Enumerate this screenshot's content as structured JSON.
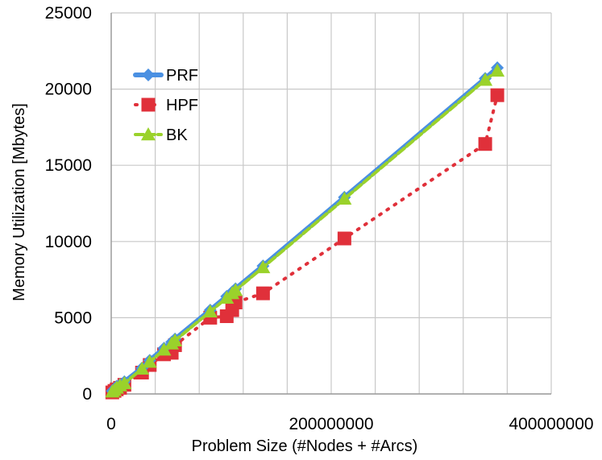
{
  "chart_data": {
    "type": "line",
    "title": "",
    "xlabel": "Problem Size (#Nodes + #Arcs)",
    "ylabel": "Memory Utilization [Mbytes]",
    "xlim": [
      0,
      400000000
    ],
    "ylim": [
      0,
      25000
    ],
    "x_ticks": [
      0,
      200000000,
      400000000
    ],
    "x_tick_labels": [
      "0",
      "200000000",
      "400000000"
    ],
    "y_ticks": [
      0,
      5000,
      10000,
      15000,
      20000,
      25000
    ],
    "y_tick_labels": [
      "0",
      "5000",
      "10000",
      "15000",
      "20000",
      "25000"
    ],
    "grid": true,
    "x_gridlines": [
      0,
      40000000,
      80000000,
      120000000,
      160000000,
      200000000,
      240000000,
      280000000,
      320000000,
      360000000,
      400000000
    ],
    "legend_position": "top-left",
    "series": [
      {
        "name": "PRF",
        "color": "#4a90e2",
        "marker": "diamond",
        "line_style": "solid",
        "points": [
          [
            1000000,
            200
          ],
          [
            3000000,
            300
          ],
          [
            5000000,
            500
          ],
          [
            8000000,
            600
          ],
          [
            12000000,
            800
          ],
          [
            28000000,
            1700
          ],
          [
            35000000,
            2200
          ],
          [
            48000000,
            3000
          ],
          [
            55000000,
            3400
          ],
          [
            58000000,
            3600
          ],
          [
            90000000,
            5500
          ],
          [
            105000000,
            6400
          ],
          [
            110000000,
            6700
          ],
          [
            113000000,
            6900
          ],
          [
            138000000,
            8400
          ],
          [
            212000000,
            12900
          ],
          [
            340000000,
            20700
          ],
          [
            351000000,
            21400
          ]
        ]
      },
      {
        "name": "HPF",
        "color": "#e0303a",
        "marker": "square",
        "line_style": "dotted",
        "points": [
          [
            1000000,
            100
          ],
          [
            3000000,
            200
          ],
          [
            5000000,
            300
          ],
          [
            8000000,
            400
          ],
          [
            12000000,
            600
          ],
          [
            28000000,
            1400
          ],
          [
            35000000,
            1900
          ],
          [
            48000000,
            2600
          ],
          [
            55000000,
            2700
          ],
          [
            58000000,
            3200
          ],
          [
            90000000,
            5000
          ],
          [
            105000000,
            5100
          ],
          [
            110000000,
            5500
          ],
          [
            113000000,
            6000
          ],
          [
            138000000,
            6600
          ],
          [
            212000000,
            10200
          ],
          [
            340000000,
            16400
          ],
          [
            351000000,
            19600
          ]
        ]
      },
      {
        "name": "BK",
        "color": "#9ad22b",
        "marker": "triangle",
        "line_style": "dashed",
        "points": [
          [
            1000000,
            150
          ],
          [
            3000000,
            250
          ],
          [
            5000000,
            400
          ],
          [
            8000000,
            550
          ],
          [
            12000000,
            700
          ],
          [
            28000000,
            1650
          ],
          [
            35000000,
            2100
          ],
          [
            48000000,
            2900
          ],
          [
            55000000,
            3300
          ],
          [
            58000000,
            3500
          ],
          [
            90000000,
            5400
          ],
          [
            105000000,
            6300
          ],
          [
            110000000,
            6600
          ],
          [
            113000000,
            6800
          ],
          [
            138000000,
            8300
          ],
          [
            212000000,
            12800
          ],
          [
            340000000,
            20600
          ],
          [
            351000000,
            21200
          ]
        ]
      }
    ]
  }
}
